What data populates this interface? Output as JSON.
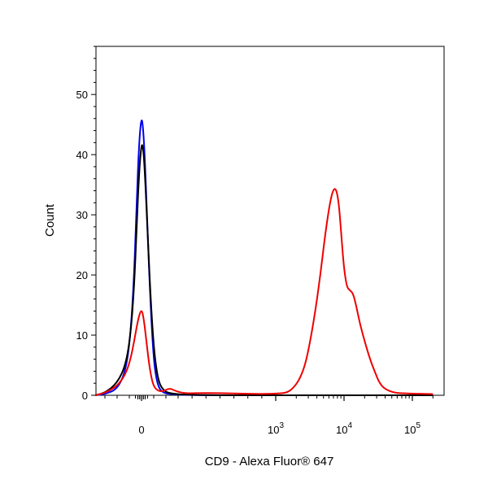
{
  "chart_data": {
    "type": "line",
    "title": "",
    "xlabel": "CD9 - Alexa Fluor® 647",
    "ylabel": "Count",
    "x_scale": "biexponential",
    "xlim": [
      -400,
      200000
    ],
    "ylim": [
      0,
      58
    ],
    "grid": false,
    "x_ticks": [
      {
        "value": 0,
        "base": "0",
        "exp": ""
      },
      {
        "value": 1000,
        "base": "10",
        "exp": "3"
      },
      {
        "value": 10000,
        "base": "10",
        "exp": "4"
      },
      {
        "value": 100000,
        "base": "10",
        "exp": "5"
      }
    ],
    "y_ticks": [
      0,
      10,
      20,
      30,
      40,
      50
    ],
    "series": [
      {
        "color": "#0000ee",
        "points": [
          [
            -380,
            0
          ],
          [
            -300,
            0.2
          ],
          [
            -200,
            1
          ],
          [
            -130,
            4
          ],
          [
            -90,
            10
          ],
          [
            -60,
            20
          ],
          [
            -40,
            32
          ],
          [
            -20,
            42
          ],
          [
            0,
            46.5
          ],
          [
            15,
            44
          ],
          [
            30,
            38
          ],
          [
            50,
            27
          ],
          [
            70,
            17
          ],
          [
            90,
            9
          ],
          [
            110,
            4
          ],
          [
            140,
            1.2
          ],
          [
            180,
            0.4
          ],
          [
            230,
            0.2
          ],
          [
            400,
            0
          ],
          [
            2000,
            0
          ],
          [
            200000,
            0
          ]
        ]
      },
      {
        "color": "#000000",
        "points": [
          [
            -380,
            0
          ],
          [
            -300,
            0.4
          ],
          [
            -200,
            2
          ],
          [
            -130,
            5
          ],
          [
            -90,
            10
          ],
          [
            -60,
            18
          ],
          [
            -40,
            28
          ],
          [
            -20,
            37
          ],
          [
            0,
            42
          ],
          [
            15,
            41
          ],
          [
            30,
            36
          ],
          [
            50,
            27
          ],
          [
            70,
            18
          ],
          [
            90,
            11
          ],
          [
            110,
            6
          ],
          [
            140,
            2.2
          ],
          [
            180,
            0.8
          ],
          [
            230,
            0.3
          ],
          [
            400,
            0
          ],
          [
            2000,
            0
          ],
          [
            200000,
            0
          ]
        ]
      },
      {
        "color": "#ee0000",
        "points": [
          [
            -380,
            0
          ],
          [
            -300,
            0.4
          ],
          [
            -200,
            1.5
          ],
          [
            -130,
            3.5
          ],
          [
            -90,
            6
          ],
          [
            -60,
            9
          ],
          [
            -30,
            12.5
          ],
          [
            0,
            14.5
          ],
          [
            20,
            12.5
          ],
          [
            40,
            9
          ],
          [
            60,
            5.5
          ],
          [
            80,
            3
          ],
          [
            100,
            1.5
          ],
          [
            130,
            0.8
          ],
          [
            170,
            0.6
          ],
          [
            230,
            1.2
          ],
          [
            280,
            0.7
          ],
          [
            350,
            0.3
          ],
          [
            500,
            0.4
          ],
          [
            700,
            0.3
          ],
          [
            900,
            0.2
          ],
          [
            1200,
            0.3
          ],
          [
            1500,
            0.5
          ],
          [
            1800,
            1.2
          ],
          [
            2200,
            2.5
          ],
          [
            2700,
            5
          ],
          [
            3200,
            9
          ],
          [
            3800,
            14
          ],
          [
            4500,
            20
          ],
          [
            5200,
            26
          ],
          [
            6000,
            31
          ],
          [
            6800,
            34
          ],
          [
            7600,
            34.5
          ],
          [
            8400,
            32
          ],
          [
            9200,
            26
          ],
          [
            10000,
            21
          ],
          [
            11000,
            18
          ],
          [
            12000,
            17.5
          ],
          [
            13500,
            17
          ],
          [
            15000,
            15
          ],
          [
            17000,
            12
          ],
          [
            20000,
            9
          ],
          [
            24000,
            6
          ],
          [
            28000,
            4
          ],
          [
            33000,
            2
          ],
          [
            40000,
            1
          ],
          [
            55000,
            0.4
          ],
          [
            80000,
            0.3
          ],
          [
            200000,
            0.2
          ]
        ]
      }
    ]
  }
}
